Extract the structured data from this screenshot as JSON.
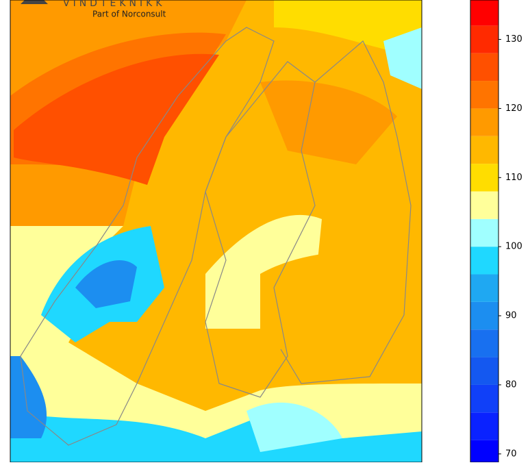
{
  "logo": {
    "name": "VINDTEKNIKK",
    "tagline": "Part of Norconsult"
  },
  "colorbar": {
    "lim": [
      68,
      136
    ],
    "levels": [
      68,
      72,
      76,
      80,
      84,
      88,
      92,
      96,
      100,
      104,
      108,
      112,
      116,
      120,
      124,
      128,
      132,
      136
    ],
    "colors": [
      "#0000ff",
      "#0a22ff",
      "#1040f8",
      "#1458f0",
      "#1870f0",
      "#1c8ef0",
      "#1fa8f2",
      "#1fd8ff",
      "#a0ffff",
      "#ffff9a",
      "#ffdd00",
      "#ffb800",
      "#ff9a00",
      "#ff7400",
      "#ff5000",
      "#ff2a00",
      "#ff0000",
      "#cc0000"
    ],
    "ticks": [
      70,
      80,
      90,
      100,
      110,
      120,
      130
    ]
  }
}
